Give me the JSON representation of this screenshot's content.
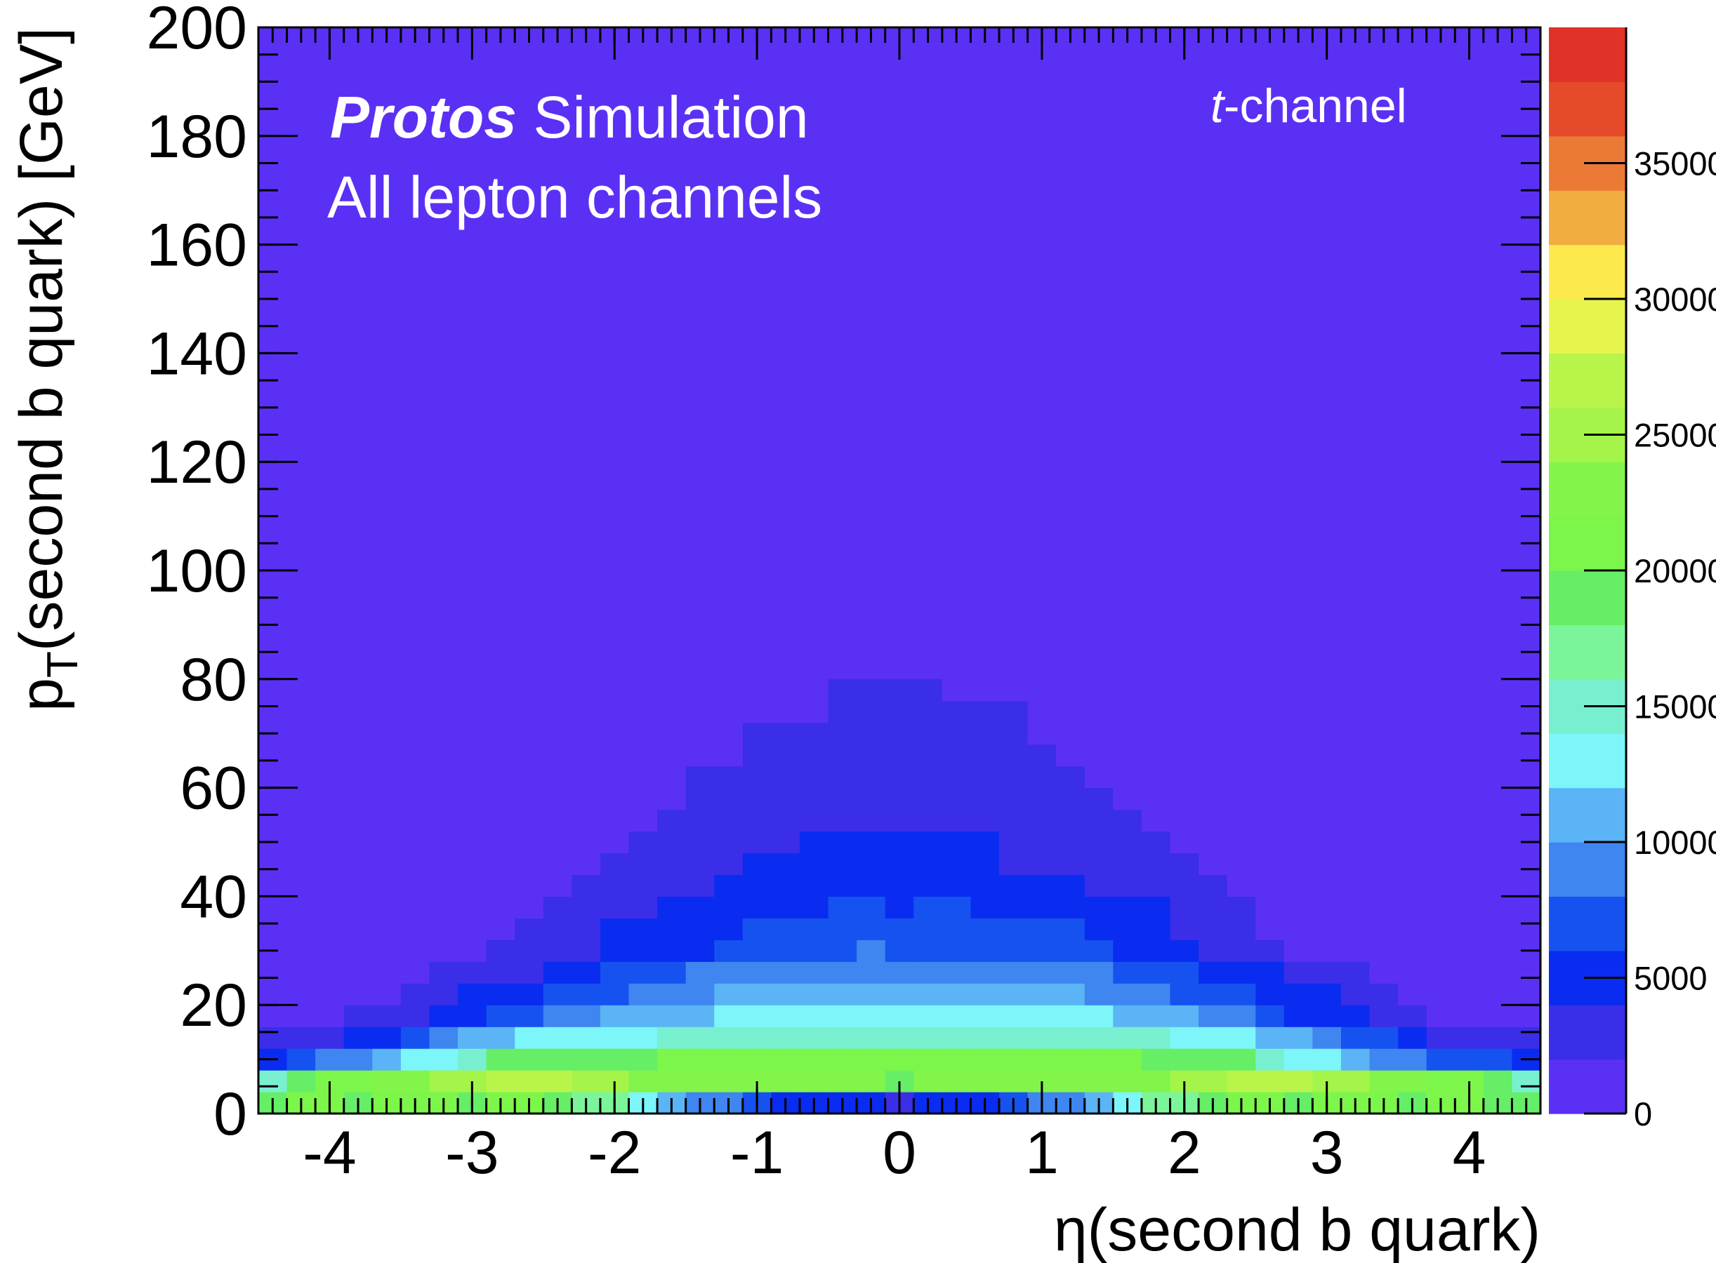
{
  "chart_data": {
    "type": "heatmap",
    "title_bold": "Protos",
    "title": "Simulation",
    "subtitle": "All lepton channels",
    "annotation_italic": "t",
    "annotation": "-channel",
    "x_label": "η(second b quark)",
    "y_label": {
      "main": "p",
      "sub": "T",
      "rest": "(second b quark) [GeV]"
    },
    "xlim": [
      -4.5,
      4.5
    ],
    "ylim": [
      0,
      200
    ],
    "xticks": [
      -4,
      -3,
      -2,
      -1,
      0,
      1,
      2,
      3,
      4
    ],
    "yticks": [
      0,
      20,
      40,
      60,
      80,
      100,
      120,
      140,
      160,
      180,
      200
    ],
    "x_edges": [
      -4.5,
      -4.3,
      -4.1,
      -3.9,
      -3.7,
      -3.5,
      -3.3,
      -3.1,
      -2.9,
      -2.7,
      -2.5,
      -2.3,
      -2.1,
      -1.9,
      -1.7,
      -1.5,
      -1.3,
      -1.1,
      -0.9,
      -0.7,
      -0.5,
      -0.3,
      -0.1,
      0.1,
      0.3,
      0.5,
      0.7,
      0.9,
      1.1,
      1.3,
      1.5,
      1.7,
      1.9,
      2.1,
      2.3,
      2.5,
      2.7,
      2.9,
      3.1,
      3.3,
      3.5,
      3.7,
      3.9,
      4.1,
      4.3,
      4.5
    ],
    "y_edges": [
      0,
      4,
      8,
      12,
      16,
      20,
      24,
      28,
      32,
      36,
      40,
      44,
      48,
      52,
      56,
      60,
      64,
      68,
      72,
      76,
      80
    ],
    "z": [
      [
        19000,
        21000,
        21000,
        19000,
        21000,
        21000,
        21000,
        19000,
        21000,
        21000,
        19000,
        17000,
        17000,
        13000,
        11000,
        9000,
        9000,
        7000,
        5000,
        5000,
        5000,
        5000,
        3000,
        5000,
        5000,
        5000,
        7000,
        9000,
        9000,
        11000,
        13000,
        17000,
        17000,
        19000,
        21000,
        21000,
        19000,
        21000,
        21000,
        21000,
        19000,
        21000,
        21000,
        19000,
        19000
      ],
      [
        15000,
        19000,
        21000,
        21000,
        23000,
        23000,
        25000,
        25000,
        27000,
        27000,
        27000,
        25000,
        25000,
        23000,
        23000,
        23000,
        23000,
        23000,
        23000,
        23000,
        23000,
        23000,
        19000,
        23000,
        23000,
        23000,
        23000,
        23000,
        23000,
        23000,
        23000,
        23000,
        25000,
        25000,
        27000,
        27000,
        27000,
        25000,
        25000,
        23000,
        23000,
        21000,
        21000,
        19000,
        15000
      ],
      [
        5000,
        7000,
        9000,
        9000,
        11000,
        13000,
        13000,
        15000,
        19000,
        19000,
        19000,
        19000,
        19000,
        19000,
        21000,
        21000,
        21000,
        21000,
        21000,
        21000,
        21000,
        21000,
        21000,
        21000,
        21000,
        21000,
        21000,
        21000,
        21000,
        21000,
        21000,
        19000,
        19000,
        19000,
        19000,
        15000,
        13000,
        13000,
        11000,
        9000,
        9000,
        7000,
        7000,
        7000,
        5000
      ],
      [
        3000,
        3000,
        3000,
        5000,
        5000,
        7000,
        9000,
        11000,
        11000,
        13000,
        13000,
        13000,
        13000,
        13000,
        15000,
        15000,
        15000,
        15000,
        15000,
        15000,
        15000,
        15000,
        15000,
        15000,
        15000,
        15000,
        15000,
        15000,
        15000,
        15000,
        15000,
        15000,
        13000,
        13000,
        13000,
        11000,
        11000,
        9000,
        7000,
        7000,
        5000,
        3000,
        3000,
        3000,
        3000
      ],
      [
        1000,
        1000,
        1000,
        3000,
        3000,
        3000,
        5000,
        5000,
        7000,
        7000,
        9000,
        9000,
        11000,
        11000,
        11000,
        11000,
        13000,
        13000,
        13000,
        13000,
        13000,
        13000,
        13000,
        13000,
        13000,
        13000,
        13000,
        13000,
        13000,
        13000,
        11000,
        11000,
        11000,
        9000,
        9000,
        7000,
        5000,
        5000,
        5000,
        3000,
        3000,
        1000,
        1000,
        1000,
        1000
      ],
      [
        1000,
        1000,
        1000,
        1000,
        1000,
        3000,
        3000,
        5000,
        5000,
        5000,
        7000,
        7000,
        7000,
        9000,
        9000,
        9000,
        11000,
        11000,
        11000,
        11000,
        11000,
        11000,
        11000,
        11000,
        11000,
        11000,
        11000,
        11000,
        11000,
        9000,
        9000,
        9000,
        7000,
        7000,
        7000,
        5000,
        5000,
        5000,
        3000,
        3000,
        1000,
        1000,
        1000,
        1000,
        1000
      ],
      [
        1000,
        1000,
        1000,
        1000,
        1000,
        1000,
        3000,
        3000,
        3000,
        3000,
        5000,
        5000,
        7000,
        7000,
        7000,
        9000,
        9000,
        9000,
        9000,
        9000,
        9000,
        9000,
        9000,
        9000,
        9000,
        9000,
        9000,
        9000,
        9000,
        9000,
        7000,
        7000,
        7000,
        5000,
        5000,
        5000,
        3000,
        3000,
        3000,
        1000,
        1000,
        1000,
        1000,
        1000,
        1000
      ],
      [
        1000,
        1000,
        1000,
        1000,
        1000,
        1000,
        1000,
        1000,
        3000,
        3000,
        3000,
        3000,
        5000,
        5000,
        5000,
        5000,
        7000,
        7000,
        7000,
        7000,
        7000,
        9000,
        7000,
        7000,
        7000,
        7000,
        7000,
        7000,
        7000,
        7000,
        5000,
        5000,
        5000,
        3000,
        3000,
        3000,
        1000,
        1000,
        1000,
        1000,
        1000,
        1000,
        1000,
        1000,
        1000
      ],
      [
        1000,
        1000,
        1000,
        1000,
        1000,
        1000,
        1000,
        1000,
        1000,
        3000,
        3000,
        3000,
        5000,
        5000,
        5000,
        5000,
        5000,
        7000,
        7000,
        7000,
        7000,
        7000,
        7000,
        7000,
        7000,
        7000,
        7000,
        7000,
        7000,
        5000,
        5000,
        5000,
        3000,
        3000,
        3000,
        1000,
        1000,
        1000,
        1000,
        1000,
        1000,
        1000,
        1000,
        1000,
        1000
      ],
      [
        1000,
        1000,
        1000,
        1000,
        1000,
        1000,
        1000,
        1000,
        1000,
        1000,
        3000,
        3000,
        3000,
        3000,
        5000,
        5000,
        5000,
        5000,
        5000,
        5000,
        7000,
        7000,
        5000,
        7000,
        7000,
        5000,
        5000,
        5000,
        5000,
        5000,
        5000,
        5000,
        3000,
        3000,
        3000,
        1000,
        1000,
        1000,
        1000,
        1000,
        1000,
        1000,
        1000,
        1000,
        1000
      ],
      [
        1000,
        1000,
        1000,
        1000,
        1000,
        1000,
        1000,
        1000,
        1000,
        1000,
        1000,
        3000,
        3000,
        3000,
        3000,
        3000,
        5000,
        5000,
        5000,
        5000,
        5000,
        5000,
        5000,
        5000,
        5000,
        5000,
        5000,
        5000,
        5000,
        3000,
        3000,
        3000,
        3000,
        3000,
        1000,
        1000,
        1000,
        1000,
        1000,
        1000,
        1000,
        1000,
        1000,
        1000,
        1000
      ],
      [
        1000,
        1000,
        1000,
        1000,
        1000,
        1000,
        1000,
        1000,
        1000,
        1000,
        1000,
        1000,
        3000,
        3000,
        3000,
        3000,
        3000,
        5000,
        5000,
        5000,
        5000,
        5000,
        5000,
        5000,
        5000,
        5000,
        3000,
        3000,
        3000,
        3000,
        3000,
        3000,
        3000,
        1000,
        1000,
        1000,
        1000,
        1000,
        1000,
        1000,
        1000,
        1000,
        1000,
        1000,
        1000
      ],
      [
        1000,
        1000,
        1000,
        1000,
        1000,
        1000,
        1000,
        1000,
        1000,
        1000,
        1000,
        1000,
        1000,
        3000,
        3000,
        3000,
        3000,
        3000,
        3000,
        5000,
        5000,
        5000,
        5000,
        5000,
        5000,
        5000,
        3000,
        3000,
        3000,
        3000,
        3000,
        3000,
        1000,
        1000,
        1000,
        1000,
        1000,
        1000,
        1000,
        1000,
        1000,
        1000,
        1000,
        1000,
        1000
      ],
      [
        1000,
        1000,
        1000,
        1000,
        1000,
        1000,
        1000,
        1000,
        1000,
        1000,
        1000,
        1000,
        1000,
        1000,
        3000,
        3000,
        3000,
        3000,
        3000,
        3000,
        3000,
        3000,
        3000,
        3000,
        3000,
        3000,
        3000,
        3000,
        3000,
        3000,
        3000,
        1000,
        1000,
        1000,
        1000,
        1000,
        1000,
        1000,
        1000,
        1000,
        1000,
        1000,
        1000,
        1000,
        1000
      ],
      [
        1000,
        1000,
        1000,
        1000,
        1000,
        1000,
        1000,
        1000,
        1000,
        1000,
        1000,
        1000,
        1000,
        1000,
        1000,
        3000,
        3000,
        3000,
        3000,
        3000,
        3000,
        3000,
        3000,
        3000,
        3000,
        3000,
        3000,
        3000,
        3000,
        3000,
        1000,
        1000,
        1000,
        1000,
        1000,
        1000,
        1000,
        1000,
        1000,
        1000,
        1000,
        1000,
        1000,
        1000,
        1000
      ],
      [
        1000,
        1000,
        1000,
        1000,
        1000,
        1000,
        1000,
        1000,
        1000,
        1000,
        1000,
        1000,
        1000,
        1000,
        1000,
        3000,
        3000,
        3000,
        3000,
        3000,
        3000,
        3000,
        3000,
        3000,
        3000,
        3000,
        3000,
        3000,
        3000,
        1000,
        1000,
        1000,
        1000,
        1000,
        1000,
        1000,
        1000,
        1000,
        1000,
        1000,
        1000,
        1000,
        1000,
        1000,
        1000
      ],
      [
        1000,
        1000,
        1000,
        1000,
        1000,
        1000,
        1000,
        1000,
        1000,
        1000,
        1000,
        1000,
        1000,
        1000,
        1000,
        1000,
        1000,
        3000,
        3000,
        3000,
        3000,
        3000,
        3000,
        3000,
        3000,
        3000,
        3000,
        3000,
        1000,
        1000,
        1000,
        1000,
        1000,
        1000,
        1000,
        1000,
        1000,
        1000,
        1000,
        1000,
        1000,
        1000,
        1000,
        1000,
        1000
      ],
      [
        1000,
        1000,
        1000,
        1000,
        1000,
        1000,
        1000,
        1000,
        1000,
        1000,
        1000,
        1000,
        1000,
        1000,
        1000,
        1000,
        1000,
        3000,
        3000,
        3000,
        3000,
        3000,
        3000,
        3000,
        3000,
        3000,
        3000,
        1000,
        1000,
        1000,
        1000,
        1000,
        1000,
        1000,
        1000,
        1000,
        1000,
        1000,
        1000,
        1000,
        1000,
        1000,
        1000,
        1000,
        1000
      ],
      [
        1000,
        1000,
        1000,
        1000,
        1000,
        1000,
        1000,
        1000,
        1000,
        1000,
        1000,
        1000,
        1000,
        1000,
        1000,
        1000,
        1000,
        1000,
        1000,
        1000,
        3000,
        3000,
        3000,
        3000,
        3000,
        3000,
        3000,
        1000,
        1000,
        1000,
        1000,
        1000,
        1000,
        1000,
        1000,
        1000,
        1000,
        1000,
        1000,
        1000,
        1000,
        1000,
        1000,
        1000,
        1000
      ],
      [
        1000,
        1000,
        1000,
        1000,
        1000,
        1000,
        1000,
        1000,
        1000,
        1000,
        1000,
        1000,
        1000,
        1000,
        1000,
        1000,
        1000,
        1000,
        1000,
        1000,
        3000,
        3000,
        3000,
        3000,
        1000,
        1000,
        1000,
        1000,
        1000,
        1000,
        1000,
        1000,
        1000,
        1000,
        1000,
        1000,
        1000,
        1000,
        1000,
        1000,
        1000,
        1000,
        1000,
        1000,
        1000
      ]
    ],
    "zlim": [
      0,
      40000
    ],
    "zticks": [
      0,
      5000,
      10000,
      15000,
      20000,
      25000,
      30000,
      35000
    ],
    "palette": [
      "#5b30f5",
      "#3a2ee8",
      "#0a2cf0",
      "#1652f0",
      "#3f86f0",
      "#5ab4f5",
      "#7cf6f8",
      "#78f0d0",
      "#7cf59a",
      "#66ee66",
      "#7cf64a",
      "#82f44a",
      "#a4f44a",
      "#b8f44a",
      "#e8f44e",
      "#fce94e",
      "#f1ad40",
      "#ec7a37",
      "#e54b2a",
      "#e03226"
    ]
  }
}
